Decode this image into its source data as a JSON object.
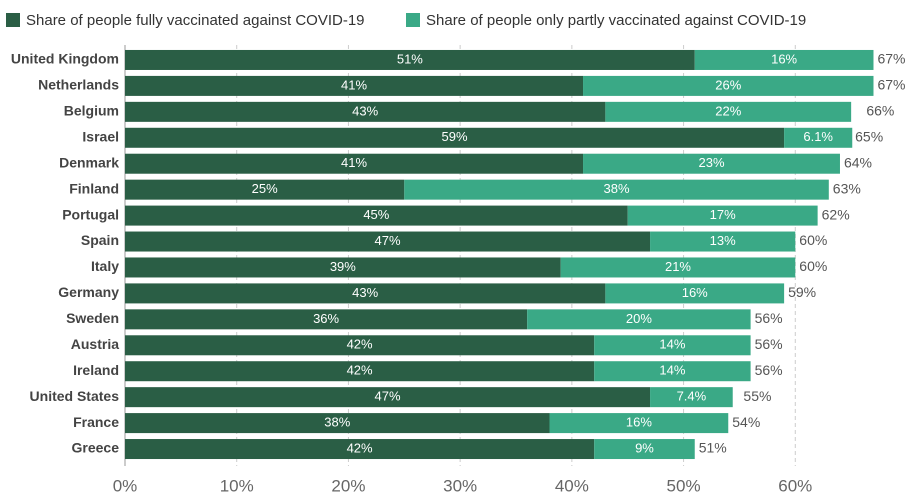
{
  "chart_data": {
    "type": "stacked-bar",
    "orientation": "horizontal",
    "categories": [
      "United Kingdom",
      "Netherlands",
      "Belgium",
      "Israel",
      "Denmark",
      "Finland",
      "Portugal",
      "Spain",
      "Italy",
      "Germany",
      "Sweden",
      "Austria",
      "Ireland",
      "United States",
      "France",
      "Greece"
    ],
    "series": [
      {
        "name": "Share of people fully vaccinated against COVID-19",
        "color": "#2a5e45",
        "values": [
          51,
          41,
          43,
          59,
          41,
          25,
          45,
          47,
          39,
          43,
          36,
          42,
          42,
          47,
          38,
          42
        ],
        "value_labels": [
          "51%",
          "41%",
          "43%",
          "59%",
          "41%",
          "25%",
          "45%",
          "47%",
          "39%",
          "43%",
          "36%",
          "42%",
          "42%",
          "47%",
          "38%",
          "42%"
        ]
      },
      {
        "name": "Share of people only partly vaccinated against COVID-19",
        "color": "#3aa986",
        "values": [
          16,
          26,
          22,
          6.1,
          23,
          38,
          17,
          13,
          21,
          16,
          20,
          14,
          14,
          7.4,
          16,
          9
        ],
        "value_labels": [
          "16%",
          "26%",
          "22%",
          "6.1%",
          "23%",
          "38%",
          "17%",
          "13%",
          "21%",
          "16%",
          "20%",
          "14%",
          "14%",
          "7.4%",
          "16%",
          "9%"
        ]
      }
    ],
    "totals": [
      67,
      67,
      66,
      65,
      64,
      63,
      62,
      60,
      60,
      59,
      56,
      56,
      56,
      55,
      54,
      51
    ],
    "total_labels": [
      "67%",
      "67%",
      "66%",
      "65%",
      "64%",
      "63%",
      "62%",
      "60%",
      "60%",
      "59%",
      "56%",
      "56%",
      "56%",
      "55%",
      "54%",
      "51%"
    ],
    "xlim": [
      0,
      70
    ],
    "xticks": [
      {
        "value": 0,
        "label": "0%"
      },
      {
        "value": 10,
        "label": "10%"
      },
      {
        "value": 20,
        "label": "20%"
      },
      {
        "value": 30,
        "label": "30%"
      },
      {
        "value": 40,
        "label": "40%"
      },
      {
        "value": 50,
        "label": "50%"
      },
      {
        "value": 60,
        "label": "60%"
      }
    ],
    "grid": true,
    "legend": "top"
  }
}
